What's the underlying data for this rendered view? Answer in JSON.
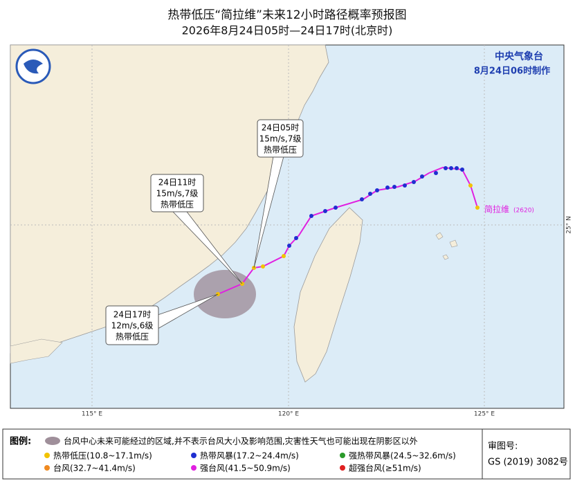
{
  "header": {
    "title": "热带低压“简拉维”未来12小时路径概率预报图",
    "subtitle": "2026年8月24日05时—24日17时(北京时)"
  },
  "issuer": {
    "agency": "中央气象台",
    "issued": "8月24日06时制作"
  },
  "callouts": [
    {
      "time": "24日05时",
      "wind": "15m/s,7级",
      "category": "热带低压"
    },
    {
      "time": "24日11时",
      "wind": "15m/s,7级",
      "category": "热带低压"
    },
    {
      "time": "24日17时",
      "wind": "12m/s,6级",
      "category": "热带低压"
    }
  ],
  "storm": {
    "name": "简拉维",
    "id": "(2620)"
  },
  "axes": {
    "lon": [
      "115° E",
      "120° E",
      "125° E"
    ],
    "lat": [
      "25° N"
    ]
  },
  "legend": {
    "title": "图例:",
    "cone": "台风中心未来可能经过的区域,并不表示台风大小及影响范围,灾害性天气也可能出现在阴影区以外",
    "items": [
      {
        "label": "热带低压(10.8~17.1m/s)",
        "color": "#f2c300"
      },
      {
        "label": "热带风暴(17.2~24.4m/s)",
        "color": "#1f2fd0"
      },
      {
        "label": "强热带风暴(24.5~32.6m/s)",
        "color": "#2a9a2a"
      },
      {
        "label": "台风(32.7~41.4m/s)",
        "color": "#f08a20"
      },
      {
        "label": "强台风(41.5~50.9m/s)",
        "color": "#e020e0"
      },
      {
        "label": "超强台风(≥51m/s)",
        "color": "#e02020"
      }
    ]
  },
  "approval": {
    "label": "审图号:",
    "number": "GS (2019) 3082号"
  }
}
